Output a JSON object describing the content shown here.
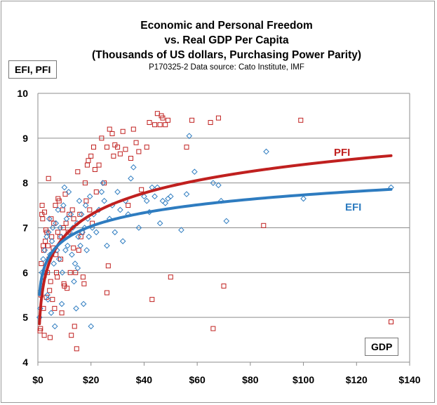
{
  "title": {
    "line1": "Economic and Personal Freedom",
    "line2": "vs. Real GDP Per Capita",
    "line3": "(Thousands of US dollars, Purchasing Power Parity)",
    "source": "P170325-2 Data source: Cato Institute, IMF"
  },
  "chart_data": {
    "type": "scatter",
    "title": "Economic and Personal Freedom vs. Real GDP Per Capita (Thousands of US dollars, Purchasing Power Parity)",
    "ylabel": "EFI, PFI",
    "xlabel": "GDP",
    "xlim": [
      0,
      140
    ],
    "ylim": [
      4,
      10
    ],
    "x_ticks": [
      "$0",
      "$20",
      "$40",
      "$60",
      "$80",
      "$100",
      "$120",
      "$140"
    ],
    "y_ticks": [
      "4",
      "5",
      "6",
      "7",
      "8",
      "9",
      "10"
    ],
    "grid": true,
    "series": [
      {
        "name": "PFI",
        "color": "#c0201f",
        "marker": "square",
        "trend": {
          "type": "log",
          "a": 5.21,
          "b": 0.695,
          "x_range": [
            0.6,
            133
          ]
        },
        "points": [
          [
            0.8,
            4.7
          ],
          [
            1,
            4.75
          ],
          [
            1.2,
            5.5
          ],
          [
            1.3,
            6.2
          ],
          [
            1.5,
            7.3
          ],
          [
            1.6,
            7.5
          ],
          [
            1.8,
            7.2
          ],
          [
            2,
            6.6
          ],
          [
            2.1,
            5.2
          ],
          [
            2.2,
            6.5
          ],
          [
            2.4,
            4.6
          ],
          [
            2.5,
            7.35
          ],
          [
            2.8,
            6.7
          ],
          [
            3,
            6.95
          ],
          [
            3.2,
            5.45
          ],
          [
            3.4,
            6.9
          ],
          [
            3.6,
            6.0
          ],
          [
            3.8,
            6.6
          ],
          [
            4,
            8.1
          ],
          [
            4.2,
            6.3
          ],
          [
            4.4,
            5.6
          ],
          [
            4.6,
            4.55
          ],
          [
            4.8,
            5.8
          ],
          [
            5,
            7.2
          ],
          [
            5.2,
            6.8
          ],
          [
            5.5,
            5.4
          ],
          [
            5.8,
            6.55
          ],
          [
            6,
            7.1
          ],
          [
            6.3,
            5.2
          ],
          [
            6.6,
            7.5
          ],
          [
            6.8,
            6.4
          ],
          [
            7,
            6.0
          ],
          [
            7.3,
            5.9
          ],
          [
            7.6,
            7.65
          ],
          [
            8,
            7.6
          ],
          [
            8.3,
            6.8
          ],
          [
            8.6,
            6.3
          ],
          [
            9,
            5.1
          ],
          [
            9.3,
            7.4
          ],
          [
            9.6,
            7.0
          ],
          [
            10,
            5.7
          ],
          [
            10.3,
            7.75
          ],
          [
            10.6,
            7.1
          ],
          [
            11,
            5.65
          ],
          [
            11.4,
            6.9
          ],
          [
            11.8,
            7.3
          ],
          [
            12.2,
            6.0
          ],
          [
            12.6,
            4.6
          ],
          [
            13,
            7.4
          ],
          [
            13.4,
            6.55
          ],
          [
            13.8,
            4.8
          ],
          [
            14.2,
            6.0
          ],
          [
            14.6,
            4.3
          ],
          [
            15,
            8.25
          ],
          [
            15.4,
            6.5
          ],
          [
            15.8,
            7.3
          ],
          [
            16.2,
            6.8
          ],
          [
            16.6,
            6.9
          ],
          [
            17,
            5.9
          ],
          [
            17.4,
            5.75
          ],
          [
            17.8,
            8.0
          ],
          [
            18.2,
            7.6
          ],
          [
            18.6,
            8.4
          ],
          [
            19,
            8.5
          ],
          [
            19.5,
            7.4
          ],
          [
            20,
            8.6
          ],
          [
            20.5,
            7.1
          ],
          [
            21,
            8.8
          ],
          [
            21.5,
            8.3
          ],
          [
            22,
            7.8
          ],
          [
            23,
            8.4
          ],
          [
            24,
            9.0
          ],
          [
            25,
            8.0
          ],
          [
            26,
            8.8
          ],
          [
            26.5,
            6.15
          ],
          [
            27,
            9.2
          ],
          [
            28,
            9.1
          ],
          [
            28.5,
            8.6
          ],
          [
            29,
            8.85
          ],
          [
            30,
            8.8
          ],
          [
            31,
            8.65
          ],
          [
            32,
            9.15
          ],
          [
            33,
            8.75
          ],
          [
            34,
            7.5
          ],
          [
            35,
            8.55
          ],
          [
            36,
            9.2
          ],
          [
            37,
            8.9
          ],
          [
            38,
            8.7
          ],
          [
            39,
            7.85
          ],
          [
            41,
            8.8
          ],
          [
            42,
            9.35
          ],
          [
            43,
            5.4
          ],
          [
            44,
            9.3
          ],
          [
            45,
            9.55
          ],
          [
            46,
            9.3
          ],
          [
            46.5,
            9.5
          ],
          [
            47,
            9.45
          ],
          [
            48,
            9.3
          ],
          [
            49,
            9.4
          ],
          [
            50,
            5.9
          ],
          [
            56,
            8.8
          ],
          [
            58,
            9.4
          ],
          [
            65,
            9.35
          ],
          [
            66,
            4.75
          ],
          [
            68,
            9.45
          ],
          [
            70,
            5.7
          ],
          [
            85,
            7.05
          ],
          [
            99,
            9.4
          ],
          [
            133,
            4.9
          ],
          [
            26,
            5.55
          ],
          [
            13.5,
            7.2
          ],
          [
            7.5,
            6.9
          ],
          [
            9.8,
            5.75
          ]
        ]
      },
      {
        "name": "EFI",
        "color": "#2e7cc0",
        "marker": "diamond",
        "trend": {
          "type": "log",
          "a": 5.73,
          "b": 0.435,
          "x_range": [
            0.6,
            133
          ]
        },
        "points": [
          [
            0.6,
            5.0
          ],
          [
            0.9,
            5.2
          ],
          [
            1.2,
            5.6
          ],
          [
            1.5,
            6.0
          ],
          [
            1.7,
            5.8
          ],
          [
            2,
            6.3
          ],
          [
            2.3,
            5.9
          ],
          [
            2.6,
            6.5
          ],
          [
            3,
            6.0
          ],
          [
            3.3,
            6.8
          ],
          [
            3.6,
            5.5
          ],
          [
            4,
            6.9
          ],
          [
            4.3,
            7.2
          ],
          [
            4.6,
            6.4
          ],
          [
            5,
            5.1
          ],
          [
            5.3,
            6.7
          ],
          [
            5.6,
            7.0
          ],
          [
            6,
            6.2
          ],
          [
            6.4,
            4.8
          ],
          [
            6.8,
            7.1
          ],
          [
            7.2,
            6.5
          ],
          [
            7.6,
            7.4
          ],
          [
            8,
            6.3
          ],
          [
            8.4,
            7.0
          ],
          [
            8.8,
            6.8
          ],
          [
            9.2,
            6.0
          ],
          [
            9.6,
            7.5
          ],
          [
            10,
            7.9
          ],
          [
            10.4,
            6.5
          ],
          [
            10.8,
            7.2
          ],
          [
            11.2,
            6.6
          ],
          [
            11.6,
            7.8
          ],
          [
            12,
            6.9
          ],
          [
            12.4,
            7.3
          ],
          [
            12.8,
            6.4
          ],
          [
            13.2,
            7.0
          ],
          [
            13.6,
            5.8
          ],
          [
            14,
            6.2
          ],
          [
            14.4,
            5.2
          ],
          [
            14.8,
            7.1
          ],
          [
            15.2,
            6.8
          ],
          [
            15.6,
            7.6
          ],
          [
            16,
            6.6
          ],
          [
            16.4,
            7.3
          ],
          [
            16.8,
            6.9
          ],
          [
            17.2,
            5.3
          ],
          [
            17.6,
            7.0
          ],
          [
            18,
            7.5
          ],
          [
            18.4,
            6.5
          ],
          [
            18.8,
            7.2
          ],
          [
            19.2,
            6.8
          ],
          [
            19.6,
            7.7
          ],
          [
            20,
            4.8
          ],
          [
            20.5,
            7.0
          ],
          [
            21,
            7.3
          ],
          [
            22,
            6.9
          ],
          [
            23,
            7.4
          ],
          [
            24,
            7.8
          ],
          [
            25,
            7.6
          ],
          [
            26,
            6.6
          ],
          [
            27,
            7.2
          ],
          [
            28,
            7.5
          ],
          [
            29,
            6.9
          ],
          [
            30,
            7.8
          ],
          [
            31,
            7.4
          ],
          [
            32,
            6.7
          ],
          [
            33,
            7.6
          ],
          [
            34,
            7.3
          ],
          [
            35,
            8.1
          ],
          [
            36,
            8.35
          ],
          [
            38,
            7.0
          ],
          [
            40,
            7.7
          ],
          [
            41,
            7.6
          ],
          [
            42,
            7.35
          ],
          [
            43,
            7.9
          ],
          [
            44,
            7.7
          ],
          [
            45,
            7.9
          ],
          [
            46,
            7.1
          ],
          [
            47,
            7.6
          ],
          [
            48,
            7.55
          ],
          [
            49,
            7.65
          ],
          [
            50,
            7.7
          ],
          [
            54,
            6.95
          ],
          [
            56,
            7.75
          ],
          [
            57,
            9.05
          ],
          [
            59,
            8.25
          ],
          [
            66,
            8.0
          ],
          [
            68,
            7.95
          ],
          [
            69,
            7.6
          ],
          [
            71,
            7.15
          ],
          [
            86,
            8.7
          ],
          [
            100,
            7.65
          ],
          [
            133,
            7.9
          ],
          [
            24.5,
            8.0
          ],
          [
            15,
            6.1
          ],
          [
            9,
            5.3
          ],
          [
            3.8,
            5.4
          ]
        ]
      }
    ],
    "annotations": [
      "PFI",
      "EFI"
    ]
  }
}
